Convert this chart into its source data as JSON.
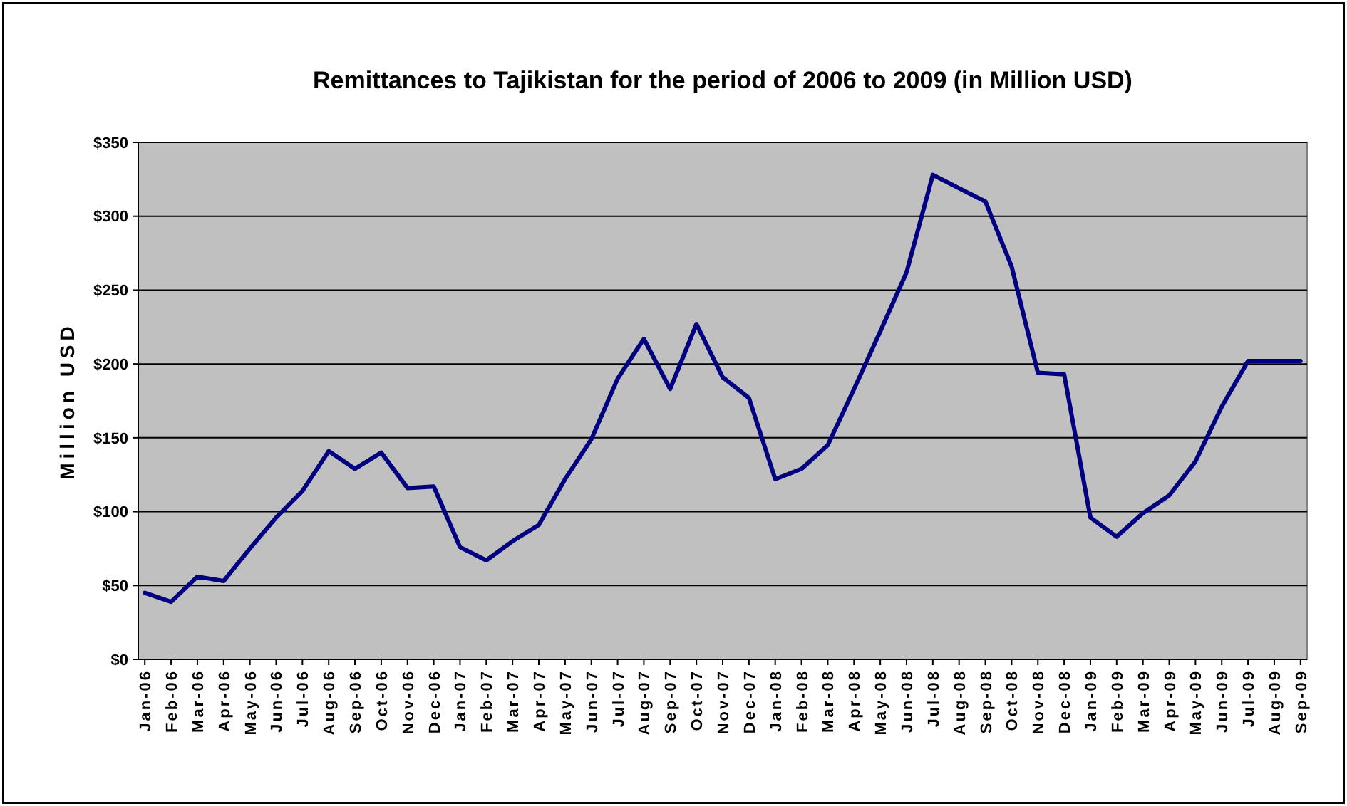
{
  "chart_data": {
    "type": "line",
    "title": "Remittances to Tajikistan for the period of  2006 to 2009 (in Million USD)",
    "ylabel": "Million USD",
    "categories": [
      "Jan-06",
      "Feb-06",
      "Mar-06",
      "Apr-06",
      "May-06",
      "Jun-06",
      "Jul-06",
      "Aug-06",
      "Sep-06",
      "Oct-06",
      "Nov-06",
      "Dec-06",
      "Jan-07",
      "Feb-07",
      "Mar-07",
      "Apr-07",
      "May-07",
      "Jun-07",
      "Jul-07",
      "Aug-07",
      "Sep-07",
      "Oct-07",
      "Nov-07",
      "Dec-07",
      "Jan-08",
      "Feb-08",
      "Mar-08",
      "Apr-08",
      "May-08",
      "Jun-08",
      "Jul-08",
      "Aug-08",
      "Sep-08",
      "Oct-08",
      "Nov-08",
      "Dec-08",
      "Jan-09",
      "Feb-09",
      "Mar-09",
      "Apr-09",
      "May-09",
      "Jun-09",
      "Jul-09",
      "Aug-09",
      "Sep-09"
    ],
    "series": [
      {
        "color": "#000080",
        "values": [
          45,
          39,
          56,
          53,
          75,
          96,
          114,
          141,
          129,
          140,
          116,
          117,
          76,
          67,
          80,
          91,
          122,
          149,
          190,
          217,
          183,
          227,
          191,
          177,
          122,
          129,
          145,
          183,
          222,
          262,
          328,
          319,
          310,
          266,
          194,
          193,
          96,
          83,
          99,
          111,
          134,
          171,
          202,
          202,
          202
        ]
      }
    ],
    "ylim": [
      0,
      350
    ],
    "yticks": [
      {
        "value": 0,
        "label": "$0"
      },
      {
        "value": 50,
        "label": "$50"
      },
      {
        "value": 100,
        "label": "$100"
      },
      {
        "value": 150,
        "label": "$150"
      },
      {
        "value": 200,
        "label": "$200"
      },
      {
        "value": 250,
        "label": "$250"
      },
      {
        "value": 300,
        "label": "$300"
      },
      {
        "value": 350,
        "label": "$350"
      }
    ],
    "grid": "y",
    "marker": "none",
    "line_style": "solid"
  }
}
